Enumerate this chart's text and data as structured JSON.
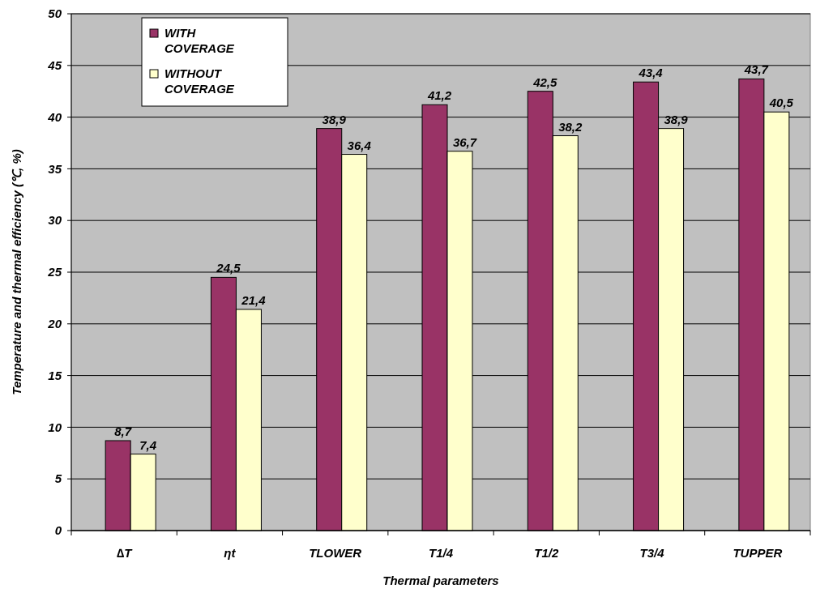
{
  "chart_data": {
    "type": "bar",
    "xlabel": "Thermal parameters",
    "ylabel": "Temperature and thermal efficiency (℃, %)",
    "categories": [
      "∆T",
      "ηt",
      "TLOWER",
      "T1/4",
      "T1/2",
      "T3/4",
      "TUPPER"
    ],
    "series": [
      {
        "name": "WITH COVERAGE",
        "color": "#993366",
        "values": [
          8.7,
          24.5,
          38.9,
          41.2,
          42.5,
          43.4,
          43.7
        ],
        "value_labels": [
          "8,7",
          "24,5",
          "38,9",
          "41,2",
          "42,5",
          "43,4",
          "43,7"
        ]
      },
      {
        "name": "WITHOUT COVERAGE",
        "color": "#ffffcc",
        "values": [
          7.4,
          21.4,
          36.4,
          36.7,
          38.2,
          38.9,
          40.5
        ],
        "value_labels": [
          "7,4",
          "21,4",
          "36,4",
          "36,7",
          "38,2",
          "38,9",
          "40,5"
        ]
      }
    ],
    "ylim": [
      0,
      50
    ],
    "yticks": [
      0,
      5,
      10,
      15,
      20,
      25,
      30,
      35,
      40,
      45,
      50
    ],
    "grid": "y",
    "legend": "top left"
  }
}
